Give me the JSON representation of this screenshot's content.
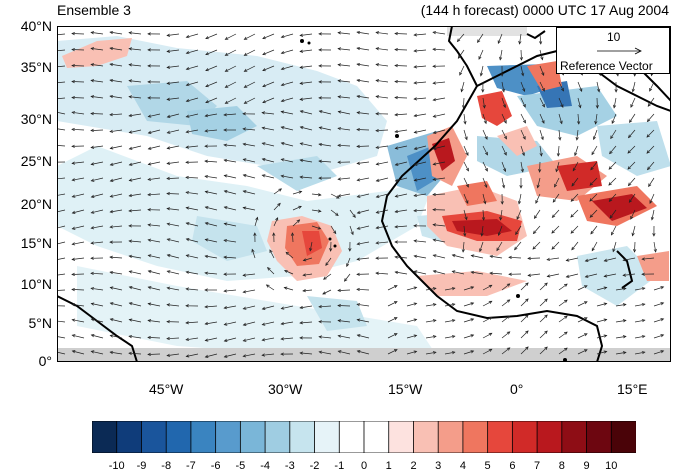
{
  "header": {
    "left_title": "Ensemble 3",
    "right_title": "(144 h forecast) 0000 UTC 17 Aug 2004"
  },
  "axes": {
    "y_ticks": [
      "40°N",
      "35°N",
      "30°N",
      "25°N",
      "20°N",
      "15°N",
      "10°N",
      "5°N",
      "0°"
    ],
    "x_ticks": [
      "45°W",
      "30°W",
      "15°W",
      "0°",
      "15°E"
    ]
  },
  "reference_vector": {
    "magnitude": "10",
    "label": "Reference Vector"
  },
  "colorbar": {
    "labels": [
      "-10",
      "-9",
      "-8",
      "-7",
      "-6",
      "-5",
      "-4",
      "-3",
      "-2",
      "-1",
      "0",
      "1",
      "2",
      "3",
      "4",
      "5",
      "6",
      "7",
      "8",
      "9",
      "10"
    ],
    "colors": [
      "#0b2a55",
      "#0f3c7a",
      "#1a559c",
      "#2167ae",
      "#3a84c0",
      "#589bcd",
      "#7ab6d8",
      "#9fcde2",
      "#c6e4ee",
      "#e6f3f8",
      "#ffffff",
      "#ffffff",
      "#fde2df",
      "#f9c0b4",
      "#f49d8a",
      "#ef765f",
      "#e6473c",
      "#d12a28",
      "#b9181e",
      "#8e0d15",
      "#6d0610",
      "#4a0308"
    ]
  }
}
